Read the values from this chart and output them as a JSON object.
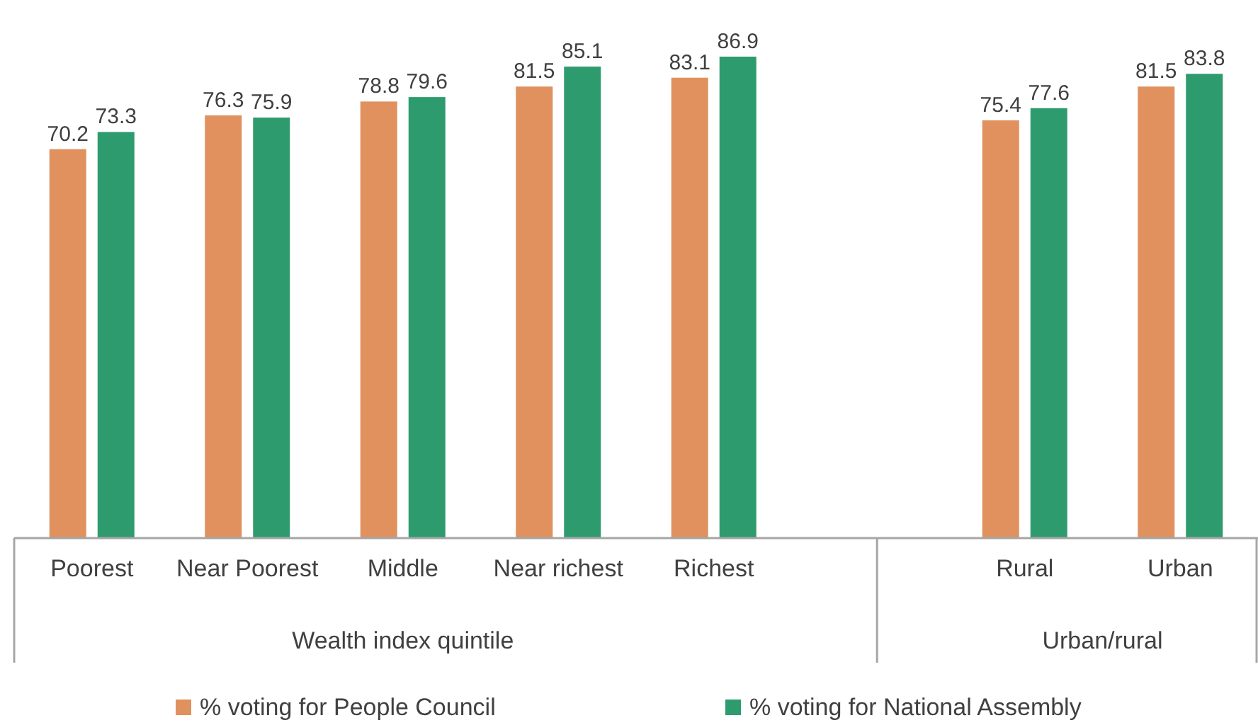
{
  "chart_data": {
    "type": "bar",
    "categories": [
      "Poorest",
      "Near Poorest",
      "Middle",
      "Near richest",
      "Richest",
      null,
      "Rural",
      "Urban"
    ],
    "series": [
      {
        "name": "% voting for People Council",
        "color": "#e0915e",
        "values": [
          70.2,
          76.3,
          78.8,
          81.5,
          83.1,
          null,
          75.4,
          81.5
        ]
      },
      {
        "name": "% voting for National Assembly",
        "color": "#2e9b6e",
        "values": [
          73.3,
          75.9,
          79.6,
          85.1,
          86.9,
          null,
          77.6,
          83.8
        ]
      }
    ],
    "tick_labels": "x",
    "data_labels": true,
    "legend": "bottom",
    "annotations": [
      "Wealth index quintile",
      "Urban/rural"
    ]
  }
}
